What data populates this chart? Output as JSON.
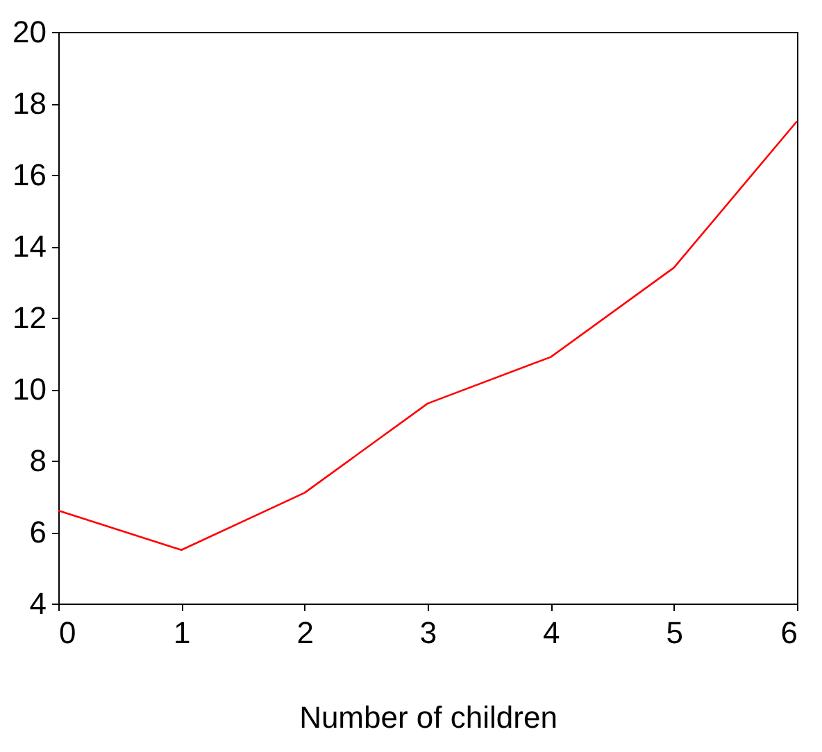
{
  "chart_data": {
    "type": "line",
    "xlabel": "Number of children",
    "x": [
      0,
      1,
      2,
      3,
      4,
      5,
      6
    ],
    "series": [
      {
        "color": "#ff0000",
        "values": [
          6.6,
          5.5,
          7.1,
          9.6,
          10.9,
          13.4,
          17.5
        ]
      }
    ],
    "xlim": [
      0,
      6
    ],
    "xticks": [
      0,
      1,
      2,
      3,
      4,
      5,
      6
    ],
    "ylim": [
      4,
      20
    ],
    "yticks": [
      4,
      6,
      8,
      10,
      12,
      14,
      16,
      18,
      20
    ],
    "grid": false,
    "marker": "none",
    "line_style": "solid"
  }
}
